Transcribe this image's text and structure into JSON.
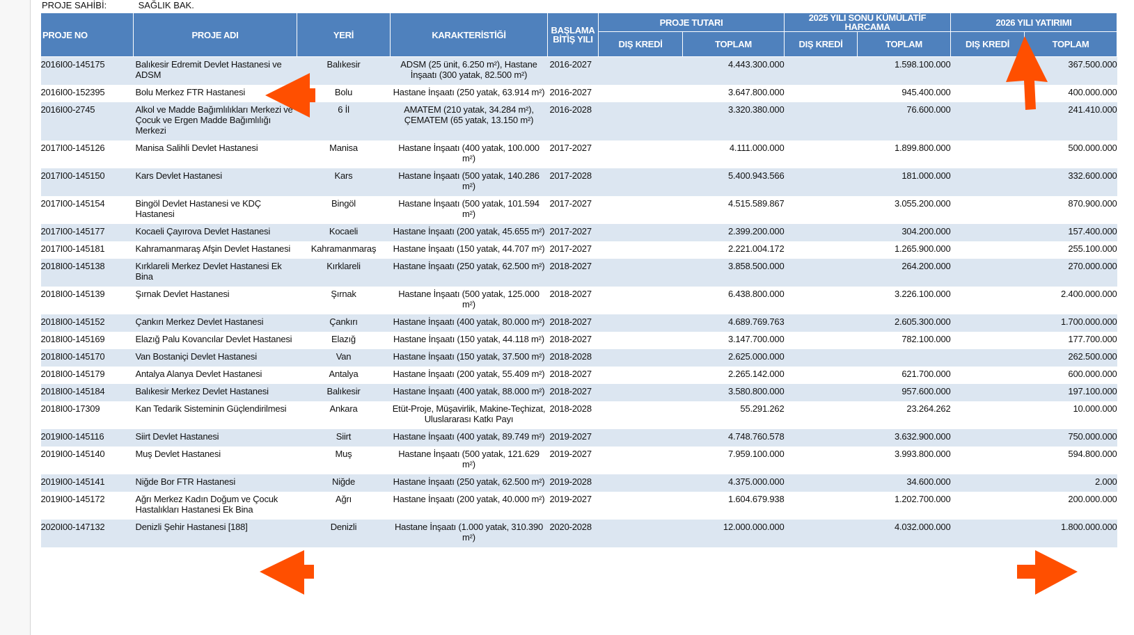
{
  "owner": {
    "label": "PROJE SAHİBİ:",
    "value": "SAĞLIK BAK."
  },
  "headers": {
    "proje_no": "PROJE NO",
    "proje_adi": "PROJE ADI",
    "yeri": "YERİ",
    "karakteristigi": "KARAKTERİSTİĞİ",
    "baslama": "BAŞLAMA BİTİŞ YILI",
    "proje_tutari": "PROJE TUTARI",
    "kumulatif": "2025 YILI SONU KÜMÜLATİF HARCAMA",
    "yatirim_2026": "2026 YILI YATIRIMI",
    "dis_kredi": "DIŞ KREDİ",
    "toplam": "TOPLAM"
  },
  "rows": [
    {
      "no": "2016I00-145175",
      "adi": "Balıkesir Edremit Devlet Hastanesi ve ADSM",
      "yeri": "Balıkesir",
      "kar": "ADSM (25 ünit, 6.250 m²), Hastane İnşaatı (300 yatak, 82.500 m²)",
      "yil": "2016-2027",
      "tutar_dis": "",
      "tutar_top": "4.443.300.000",
      "kum_dis": "",
      "kum_top": "1.598.100.000",
      "y26_dis": "",
      "y26_top": "367.500.000"
    },
    {
      "no": "2016I00-152395",
      "adi": "Bolu Merkez FTR Hastanesi",
      "yeri": "Bolu",
      "kar": "Hastane İnşaatı (250 yatak, 63.914 m²)",
      "yil": "2016-2027",
      "tutar_dis": "",
      "tutar_top": "3.647.800.000",
      "kum_dis": "",
      "kum_top": "945.400.000",
      "y26_dis": "",
      "y26_top": "400.000.000"
    },
    {
      "no": "2016I00-2745",
      "adi": "Alkol ve Madde Bağımlılıkları Merkezi ve Çocuk ve Ergen Madde Bağımlılığı Merkezi",
      "yeri": "6 İl",
      "kar": "AMATEM (210 yatak, 34.284 m²), ÇEMATEM (65 yatak, 13.150 m²)",
      "yil": "2016-2028",
      "tutar_dis": "",
      "tutar_top": "3.320.380.000",
      "kum_dis": "",
      "kum_top": "76.600.000",
      "y26_dis": "",
      "y26_top": "241.410.000"
    },
    {
      "no": "2017I00-145126",
      "adi": "Manisa Salihli Devlet Hastanesi",
      "yeri": "Manisa",
      "kar": "Hastane İnşaatı (400 yatak, 100.000 m²)",
      "yil": "2017-2027",
      "tutar_dis": "",
      "tutar_top": "4.111.000.000",
      "kum_dis": "",
      "kum_top": "1.899.800.000",
      "y26_dis": "",
      "y26_top": "500.000.000"
    },
    {
      "no": "2017I00-145150",
      "adi": "Kars Devlet Hastanesi",
      "yeri": "Kars",
      "kar": "Hastane İnşaatı (500 yatak, 140.286 m²)",
      "yil": "2017-2028",
      "tutar_dis": "",
      "tutar_top": "5.400.943.566",
      "kum_dis": "",
      "kum_top": "181.000.000",
      "y26_dis": "",
      "y26_top": "332.600.000"
    },
    {
      "no": "2017I00-145154",
      "adi": "Bingöl Devlet Hastanesi ve KDÇ Hastanesi",
      "yeri": "Bingöl",
      "kar": "Hastane İnşaatı (500 yatak, 101.594 m²)",
      "yil": "2017-2027",
      "tutar_dis": "",
      "tutar_top": "4.515.589.867",
      "kum_dis": "",
      "kum_top": "3.055.200.000",
      "y26_dis": "",
      "y26_top": "870.900.000"
    },
    {
      "no": "2017I00-145177",
      "adi": "Kocaeli Çayırova Devlet Hastanesi",
      "yeri": "Kocaeli",
      "kar": "Hastane İnşaatı (200 yatak, 45.655 m²)",
      "yil": "2017-2027",
      "tutar_dis": "",
      "tutar_top": "2.399.200.000",
      "kum_dis": "",
      "kum_top": "304.200.000",
      "y26_dis": "",
      "y26_top": "157.400.000"
    },
    {
      "no": "2017I00-145181",
      "adi": "Kahramanmaraş Afşin Devlet Hastanesi",
      "yeri": "Kahramanmaraş",
      "kar": "Hastane İnşaatı (150 yatak, 44.707 m²)",
      "yil": "2017-2027",
      "tutar_dis": "",
      "tutar_top": "2.221.004.172",
      "kum_dis": "",
      "kum_top": "1.265.900.000",
      "y26_dis": "",
      "y26_top": "255.100.000"
    },
    {
      "no": "2018I00-145138",
      "adi": "Kırklareli Merkez Devlet Hastanesi Ek Bina",
      "yeri": "Kırklareli",
      "kar": "Hastane İnşaatı (250 yatak, 62.500 m²)",
      "yil": "2018-2027",
      "tutar_dis": "",
      "tutar_top": "3.858.500.000",
      "kum_dis": "",
      "kum_top": "264.200.000",
      "y26_dis": "",
      "y26_top": "270.000.000"
    },
    {
      "no": "2018I00-145139",
      "adi": "Şırnak Devlet Hastanesi",
      "yeri": "Şırnak",
      "kar": "Hastane İnşaatı (500 yatak, 125.000 m²)",
      "yil": "2018-2027",
      "tutar_dis": "",
      "tutar_top": "6.438.800.000",
      "kum_dis": "",
      "kum_top": "3.226.100.000",
      "y26_dis": "",
      "y26_top": "2.400.000.000"
    },
    {
      "no": "2018I00-145152",
      "adi": "Çankırı Merkez Devlet Hastanesi",
      "yeri": "Çankırı",
      "kar": "Hastane İnşaatı (400 yatak, 80.000 m²)",
      "yil": "2018-2027",
      "tutar_dis": "",
      "tutar_top": "4.689.769.763",
      "kum_dis": "",
      "kum_top": "2.605.300.000",
      "y26_dis": "",
      "y26_top": "1.700.000.000"
    },
    {
      "no": "2018I00-145169",
      "adi": "Elazığ Palu Kovancılar Devlet Hastanesi",
      "yeri": "Elazığ",
      "kar": "Hastane İnşaatı (150 yatak, 44.118 m²)",
      "yil": "2018-2027",
      "tutar_dis": "",
      "tutar_top": "3.147.700.000",
      "kum_dis": "",
      "kum_top": "782.100.000",
      "y26_dis": "",
      "y26_top": "177.700.000"
    },
    {
      "no": "2018I00-145170",
      "adi": "Van Bostaniçi Devlet Hastanesi",
      "yeri": "Van",
      "kar": "Hastane İnşaatı (150 yatak, 37.500 m²)",
      "yil": "2018-2028",
      "tutar_dis": "",
      "tutar_top": "2.625.000.000",
      "kum_dis": "",
      "kum_top": "",
      "y26_dis": "",
      "y26_top": "262.500.000"
    },
    {
      "no": "2018I00-145179",
      "adi": "Antalya Alanya Devlet Hastanesi",
      "yeri": "Antalya",
      "kar": "Hastane İnşaatı (200 yatak, 55.409 m²)",
      "yil": "2018-2027",
      "tutar_dis": "",
      "tutar_top": "2.265.142.000",
      "kum_dis": "",
      "kum_top": "621.700.000",
      "y26_dis": "",
      "y26_top": "600.000.000"
    },
    {
      "no": "2018I00-145184",
      "adi": "Balıkesir Merkez Devlet Hastanesi",
      "yeri": "Balıkesir",
      "kar": "Hastane İnşaatı (400 yatak, 88.000 m²)",
      "yil": "2018-2027",
      "tutar_dis": "",
      "tutar_top": "3.580.800.000",
      "kum_dis": "",
      "kum_top": "957.600.000",
      "y26_dis": "",
      "y26_top": "197.100.000"
    },
    {
      "no": "2018I00-17309",
      "adi": "Kan Tedarik Sisteminin Güçlendirilmesi",
      "yeri": "Ankara",
      "kar": "Etüt-Proje, Müşavirlik, Makine-Teçhizat, Uluslararası Katkı Payı",
      "yil": "2018-2028",
      "tutar_dis": "",
      "tutar_top": "55.291.262",
      "kum_dis": "",
      "kum_top": "23.264.262",
      "y26_dis": "",
      "y26_top": "10.000.000"
    },
    {
      "no": "2019I00-145116",
      "adi": "Siirt Devlet Hastanesi",
      "yeri": "Siirt",
      "kar": "Hastane İnşaatı (400 yatak, 89.749 m²)",
      "yil": "2019-2027",
      "tutar_dis": "",
      "tutar_top": "4.748.760.578",
      "kum_dis": "",
      "kum_top": "3.632.900.000",
      "y26_dis": "",
      "y26_top": "750.000.000"
    },
    {
      "no": "2019I00-145140",
      "adi": "Muş Devlet Hastanesi",
      "yeri": "Muş",
      "kar": "Hastane İnşaatı (500 yatak, 121.629 m²)",
      "yil": "2019-2027",
      "tutar_dis": "",
      "tutar_top": "7.959.100.000",
      "kum_dis": "",
      "kum_top": "3.993.800.000",
      "y26_dis": "",
      "y26_top": "594.800.000"
    },
    {
      "no": "2019I00-145141",
      "adi": "Niğde Bor FTR Hastanesi",
      "yeri": "Niğde",
      "kar": "Hastane İnşaatı (250 yatak, 62.500 m²)",
      "yil": "2019-2028",
      "tutar_dis": "",
      "tutar_top": "4.375.000.000",
      "kum_dis": "",
      "kum_top": "34.600.000",
      "y26_dis": "",
      "y26_top": "2.000"
    },
    {
      "no": "2019I00-145172",
      "adi": "Ağrı Merkez Kadın Doğum ve Çocuk Hastalıkları Hastanesi Ek Bina",
      "yeri": "Ağrı",
      "kar": "Hastane İnşaatı (200 yatak, 40.000 m²)",
      "yil": "2019-2027",
      "tutar_dis": "",
      "tutar_top": "1.604.679.938",
      "kum_dis": "",
      "kum_top": "1.202.700.000",
      "y26_dis": "",
      "y26_top": "200.000.000"
    },
    {
      "no": "2020I00-147132",
      "adi": "Denizli Şehir Hastanesi [188]",
      "yeri": "Denizli",
      "kar": "Hastane İnşaatı (1.000 yatak, 310.390 m²)",
      "yil": "2020-2028",
      "tutar_dis": "",
      "tutar_top": "12.000.000.000",
      "kum_dis": "",
      "kum_top": "4.032.000.000",
      "y26_dis": "",
      "y26_top": "1.800.000.000"
    }
  ],
  "annotations": {
    "arrow_color": "#ff4f00",
    "arrows": [
      "arrow-left",
      "arrow-up",
      "arrow-left",
      "arrow-right"
    ]
  }
}
